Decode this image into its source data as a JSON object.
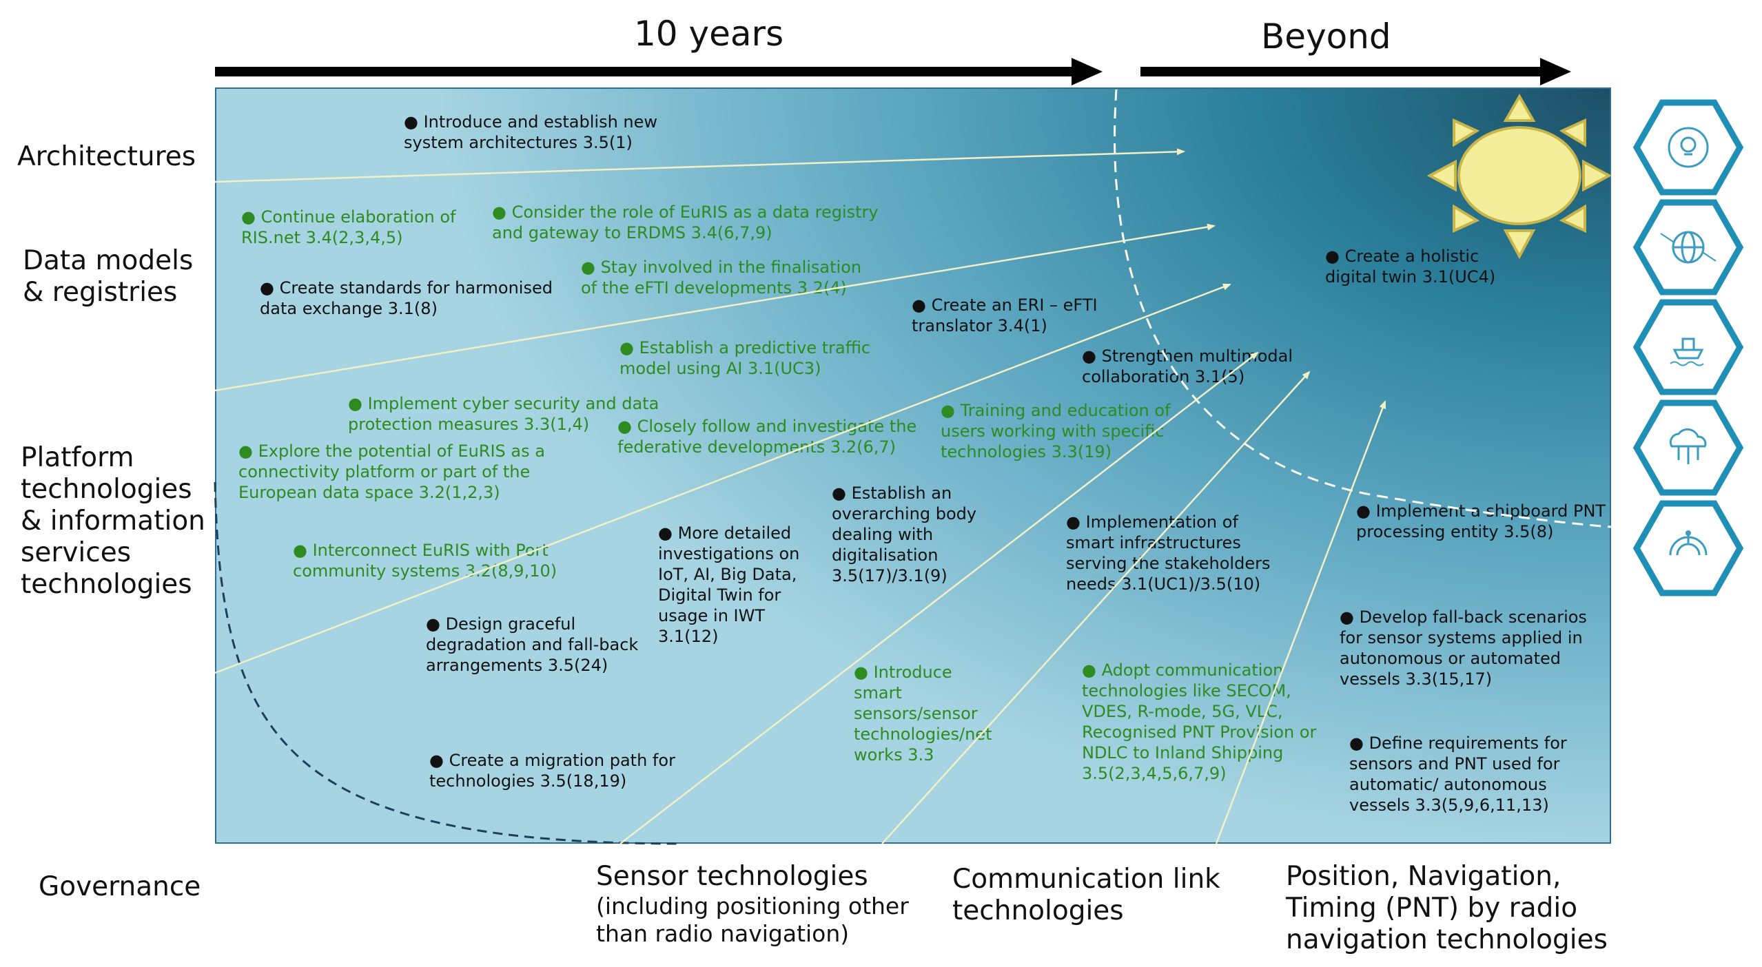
{
  "header": {
    "ten_years": "10 years",
    "beyond": "Beyond"
  },
  "row_labels": {
    "architectures": "Architectures",
    "data_models": "Data models\n& registries",
    "platform": "Platform\ntechnologies\n& information\nservices\ntechnologies",
    "governance": "Governance"
  },
  "bottom_labels": {
    "sensor_title": "Sensor technologies",
    "sensor_sub": "(including positioning other\nthan radio navigation)",
    "comm": "Communication link\ntechnologies",
    "pnt": "Position, Navigation,\nTiming (PNT) by radio\nnavigation technologies"
  },
  "items": [
    {
      "text": "● Introduce and establish new\nsystem architectures  3.5(1)",
      "color": "black"
    },
    {
      "text": "● Continue elaboration of\nRIS.net  3.4(2,3,4,5)",
      "color": "green"
    },
    {
      "text": "● Consider the role of EuRIS as a data registry\nand gateway to ERDMS 3.4(6,7,9)",
      "color": "green"
    },
    {
      "text": "● Create standards for harmonised\ndata exchange  3.1(8)",
      "color": "black"
    },
    {
      "text": "● Stay involved in the finalisation\nof the eFTI developments  3.2(4)",
      "color": "green"
    },
    {
      "text": "● Create an ERI – eFTI\ntranslator  3.4(1)",
      "color": "black"
    },
    {
      "text": "● Create a holistic\ndigital twin  3.1(UC4)",
      "color": "black"
    },
    {
      "text": "● Establish a predictive traffic\nmodel using AI  3.1(UC3)",
      "color": "green"
    },
    {
      "text": "● Strengthen multimodal\ncollaboration  3.1(5)",
      "color": "black"
    },
    {
      "text": "● Implement cyber security and data\nprotection measures  3.3(1,4)",
      "color": "green"
    },
    {
      "text": "● Closely follow and investigate the\nfederative developments  3.2(6,7)",
      "color": "green"
    },
    {
      "text": "● Training and education of\nusers working with specific\ntechnologies  3.3(19)",
      "color": "green"
    },
    {
      "text": "● Explore the potential of EuRIS as a\nconnectivity platform or part of the\nEuropean data space  3.2(1,2,3)",
      "color": "green"
    },
    {
      "text": "● Establish an\noverarching body\ndealing with\ndigitalisation\n3.5(17)/3.1(9)",
      "color": "black"
    },
    {
      "text": "● Implementation of\nsmart infrastructures\nserving the stakeholders\nneeds 3.1(UC1)/3.5(10)",
      "color": "black"
    },
    {
      "text": "● Implement a shipboard PNT\nprocessing entity  3.5(8)",
      "color": "black"
    },
    {
      "text": "● More detailed\ninvestigations on\nIoT, AI, Big Data,\nDigital Twin for\nusage in IWT\n3.1(12)",
      "color": "black"
    },
    {
      "text": "● Interconnect EuRIS with Port\ncommunity systems 3.2(8,9,10)",
      "color": "green"
    },
    {
      "text": "● Develop fall-back scenarios\nfor sensor systems applied in\nautonomous or automated\nvessels  3.3(15,17)",
      "color": "black"
    },
    {
      "text": "● Design graceful\ndegradation and fall-back\narrangements  3.5(24)",
      "color": "black"
    },
    {
      "text": "● Introduce\nsmart\nsensors/sensor\ntechnologies/net\nworks 3.3",
      "color": "green"
    },
    {
      "text": "● Adopt communication\ntechnologies like SECOM,\nVDES, R-mode, 5G, VLC,\nRecognised PNT Provision or\nNDLC to Inland Shipping\n3.5(2,3,4,5,6,7,9)",
      "color": "green"
    },
    {
      "text": "● Define requirements for\nsensors and PNT used for\nautomatic/ autonomous\nvessels  3.3(5,9,6,11,13)",
      "color": "black"
    },
    {
      "text": "● Create a migration path for\ntechnologies  3.5(18,19)",
      "color": "black"
    }
  ],
  "colors": {
    "text_green": "#2e8b1f",
    "arrow_line": "#f3f0c8",
    "hexagon_stroke": "#1f8fb5",
    "sun_fill": "#f4ee9a",
    "sun_stroke": "#c9b64a",
    "panel_dark": "#1d4f66",
    "panel_light": "#a6d4e2"
  },
  "icons": [
    "sun-icon",
    "gear-lightbulb-icon",
    "globe-network-icon",
    "ship-icon",
    "cloud-network-icon",
    "satellite-dish-icon"
  ]
}
